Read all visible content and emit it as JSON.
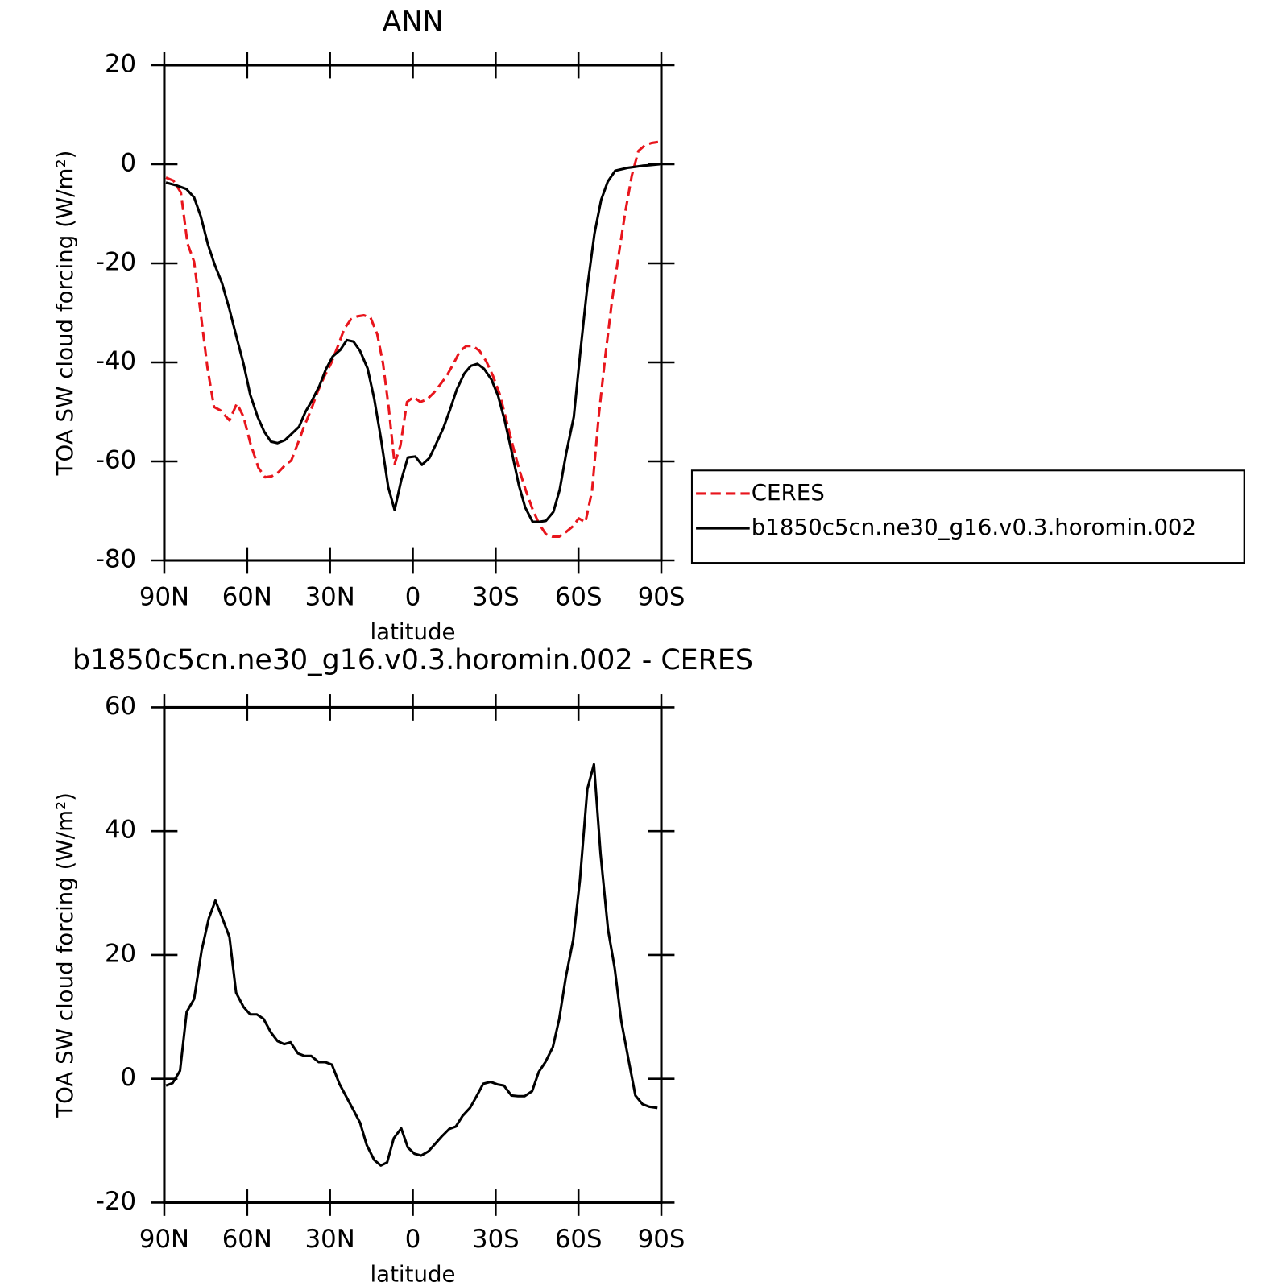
{
  "chart_data": [
    {
      "type": "line",
      "title": "ANN",
      "xlabel": "latitude",
      "ylabel": "TOA SW cloud forcing (W/m²)",
      "xlim": [
        90,
        -90
      ],
      "xticks": [
        {
          "value": 90,
          "label": "90N"
        },
        {
          "value": 60,
          "label": "60N"
        },
        {
          "value": 30,
          "label": "30N"
        },
        0,
        {
          "value": -30,
          "label": "30S"
        },
        {
          "value": -60,
          "label": "60S"
        },
        {
          "value": -90,
          "label": "90S"
        }
      ],
      "ylim": [
        -80,
        20
      ],
      "yticks": [
        -80,
        -60,
        -40,
        -20,
        0,
        20
      ],
      "legend": "right",
      "series": [
        {
          "name": "CERES",
          "color": "#e8151c",
          "dashed": true,
          "x": [
            89.4,
            86.7,
            84,
            81.6,
            79.2,
            76.8,
            74.4,
            72,
            69.7,
            66.4,
            63.7,
            61.3,
            58.9,
            55.9,
            53.5,
            51.1,
            48.7,
            46.3,
            44,
            41.6,
            39.2,
            36.8,
            34.4,
            32,
            29.6,
            27.2,
            24.8,
            22.4,
            20.1,
            17.7,
            15.3,
            12.9,
            10.8,
            8.7,
            6.6,
            4.5,
            2.1,
            -0.3,
            -2.7,
            -5.1,
            -7.5,
            -9.9,
            -12.3,
            -14.7,
            -17.1,
            -19.4,
            -21.8,
            -24.2,
            -26.6,
            -29,
            -31.4,
            -33.8,
            -36.2,
            -38.6,
            -41,
            -43.4,
            -45.8,
            -48.2,
            -50.6,
            -53,
            -55.4,
            -57.8,
            -60.1,
            -62.5,
            -64.9,
            -67.3,
            -69.7,
            -72.1,
            -74.5,
            -76.9,
            -79.3,
            -81.7,
            -84,
            -86.4,
            -88.8
          ],
          "values": [
            -2.7,
            -3.3,
            -5.7,
            -16,
            -19.7,
            -30.2,
            -41,
            -49,
            -49.7,
            -51.7,
            -48.3,
            -51,
            -56.2,
            -61.3,
            -63.2,
            -63,
            -62.2,
            -60.8,
            -59.8,
            -56.3,
            -52.7,
            -49.5,
            -45.8,
            -42.8,
            -40.2,
            -36.8,
            -33.2,
            -31.3,
            -30.7,
            -30.5,
            -31,
            -34.3,
            -40.2,
            -49.3,
            -60.5,
            -56.8,
            -48,
            -47,
            -48,
            -47.5,
            -46.2,
            -44.5,
            -42.7,
            -40.3,
            -37.7,
            -36.7,
            -36.7,
            -37.7,
            -39.8,
            -42.7,
            -46.3,
            -51.5,
            -56.8,
            -61.8,
            -66,
            -69.7,
            -72.7,
            -74.7,
            -75.2,
            -75.2,
            -74.3,
            -73.2,
            -71.5,
            -72.3,
            -66,
            -51,
            -38.8,
            -27.7,
            -18.5,
            -9.8,
            -2.3,
            2.7,
            3.8,
            4.3,
            4.5
          ]
        },
        {
          "name": "b1850c5cn.ne30_g16.v0.3.horomin.002",
          "color": "#000000",
          "dashed": false,
          "x": [
            89.4,
            86,
            82,
            79.2,
            76.8,
            74.2,
            71.8,
            69.1,
            66.4,
            63.7,
            61.3,
            58.9,
            56.2,
            53.8,
            51.4,
            49,
            46.3,
            44,
            41.2,
            38.9,
            36.5,
            33.8,
            31.4,
            29,
            26.3,
            23.9,
            21.5,
            19.1,
            16.4,
            14,
            11.6,
            8.9,
            6.6,
            4.2,
            1.8,
            -0.9,
            -3.3,
            -6,
            -8.4,
            -11.1,
            -13.5,
            -15.9,
            -18.6,
            -21,
            -23.4,
            -25.8,
            -28.5,
            -30.9,
            -33.3,
            -36,
            -38.4,
            -40.7,
            -43.4,
            -45.8,
            -48.2,
            -50.9,
            -53.2,
            -55.6,
            -58.3,
            -60.7,
            -63.1,
            -65.8,
            -68.2,
            -70.6,
            -73.3,
            -75.7,
            -78.1,
            -80.8,
            -83.2,
            -85.6,
            -89.4
          ],
          "values": [
            -3.7,
            -4.2,
            -5,
            -6.7,
            -10.5,
            -16.2,
            -20.2,
            -24,
            -29.3,
            -35.2,
            -40.3,
            -46.5,
            -51,
            -54,
            -56,
            -56.3,
            -55.7,
            -54.5,
            -53,
            -50,
            -47.7,
            -44.7,
            -41.3,
            -38.8,
            -37.5,
            -35.5,
            -35.8,
            -37.7,
            -41.2,
            -47.3,
            -55.2,
            -65.2,
            -69.8,
            -63.8,
            -59.2,
            -59,
            -60.7,
            -59.3,
            -56.5,
            -53.2,
            -49.5,
            -45.5,
            -42.3,
            -40.7,
            -40.3,
            -41.3,
            -43.5,
            -46.8,
            -51.8,
            -58.5,
            -64.8,
            -69.3,
            -72.2,
            -72.2,
            -72,
            -70.2,
            -65.7,
            -58.2,
            -51,
            -37.7,
            -25.2,
            -14,
            -7.2,
            -3.5,
            -1.3,
            -1,
            -0.7,
            -0.5,
            -0.3,
            -0.2,
            0
          ]
        }
      ]
    },
    {
      "type": "line",
      "title": "b1850c5cn.ne30_g16.v0.3.horomin.002 - CERES",
      "xlabel": "latitude",
      "ylabel": "TOA SW cloud forcing (W/m²)",
      "xlim": [
        90,
        -90
      ],
      "xticks": [
        {
          "value": 90,
          "label": "90N"
        },
        {
          "value": 60,
          "label": "60N"
        },
        {
          "value": 30,
          "label": "30N"
        },
        0,
        {
          "value": -30,
          "label": "30S"
        },
        {
          "value": -60,
          "label": "60S"
        },
        {
          "value": -90,
          "label": "90S"
        }
      ],
      "ylim": [
        -20,
        60
      ],
      "yticks": [
        -20,
        0,
        20,
        40,
        60
      ],
      "color": "#000000",
      "x": [
        89.4,
        87,
        84.3,
        81.9,
        79.2,
        76.5,
        73.9,
        71.5,
        69.1,
        66.4,
        64,
        61.3,
        58.9,
        56.5,
        54.1,
        51.4,
        49,
        46.6,
        44.3,
        41.6,
        39.2,
        36.8,
        34.1,
        31.7,
        29.3,
        26.6,
        24.2,
        21.8,
        19.1,
        16.7,
        14,
        11.6,
        9.3,
        6.9,
        4.2,
        1.8,
        -0.6,
        -3,
        -5.7,
        -8.1,
        -10.5,
        -13.2,
        -15.6,
        -18,
        -20.7,
        -23.1,
        -25.5,
        -28.2,
        -30.6,
        -33,
        -35.7,
        -38.1,
        -40.5,
        -43.2,
        -45.6,
        -48,
        -50.7,
        -53,
        -55.4,
        -58.1,
        -60.5,
        -63.2,
        -65.6,
        -68,
        -70.7,
        -73.1,
        -75.5,
        -78.2,
        -80.6,
        -83.2,
        -85.6,
        -88.6
      ],
      "values": [
        -1.1,
        -0.7,
        1.3,
        10.8,
        12.9,
        20.7,
        25.9,
        28.8,
        26.1,
        22.9,
        13.9,
        11.6,
        10.4,
        10.4,
        9.7,
        7.5,
        6.1,
        5.6,
        5.9,
        4.1,
        3.7,
        3.7,
        2.7,
        2.7,
        2.3,
        -0.8,
        -2.8,
        -4.8,
        -7.1,
        -10.7,
        -13.1,
        -14,
        -13.5,
        -9.6,
        -8,
        -11.1,
        -12.1,
        -12.4,
        -11.7,
        -10.5,
        -9.3,
        -8.1,
        -7.7,
        -6,
        -4.7,
        -2.8,
        -0.8,
        -0.5,
        -0.9,
        -1.1,
        -2.7,
        -2.8,
        -2.8,
        -2,
        1.1,
        2.7,
        5.1,
        9.6,
        16.4,
        22.5,
        32,
        46.8,
        50.8,
        36.3,
        24.1,
        17.9,
        9.3,
        2.9,
        -2.7,
        -4.1,
        -4.5,
        -4.7
      ]
    }
  ]
}
